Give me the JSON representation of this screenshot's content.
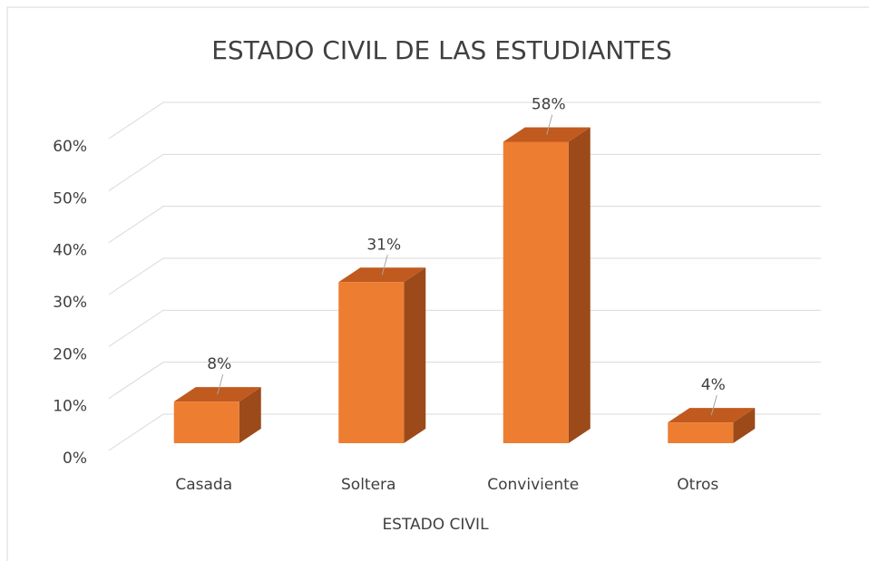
{
  "chart_data": {
    "type": "bar",
    "title": "ESTADO CIVIL DE LAS ESTUDIANTES",
    "x_label": "ESTADO CIVIL",
    "categories": [
      "Casada",
      "Soltera",
      "Conviviente",
      "Otros"
    ],
    "values": [
      8,
      31,
      58,
      4
    ],
    "value_labels": [
      "8%",
      "31%",
      "58%",
      "4%"
    ],
    "color": "#ed7d31",
    "ylim": [
      0,
      60
    ],
    "yticks": [
      {
        "value": 0,
        "label": "0%"
      },
      {
        "value": 10,
        "label": "10%"
      },
      {
        "value": 20,
        "label": "20%"
      },
      {
        "value": 30,
        "label": "30%"
      },
      {
        "value": 40,
        "label": "40%"
      },
      {
        "value": 50,
        "label": "50%"
      },
      {
        "value": 60,
        "label": "60%"
      }
    ],
    "grid": true
  }
}
